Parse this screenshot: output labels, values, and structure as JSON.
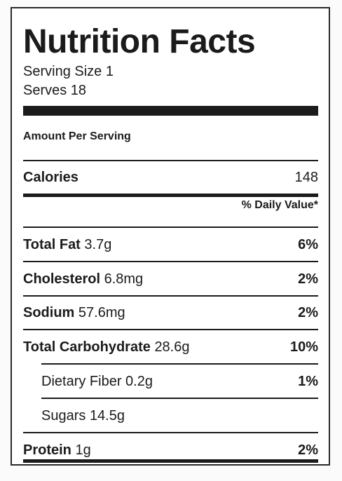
{
  "label": {
    "title": "Nutrition Facts",
    "serving_size": "Serving Size 1",
    "serves": "Serves 18",
    "amount_per_serving": "Amount Per Serving",
    "calories": {
      "label": "Calories",
      "value": "148"
    },
    "daily_value_header": "% Daily Value*",
    "nutrients": [
      {
        "name": "Total Fat",
        "amount": "3.7g",
        "dv": "6%"
      },
      {
        "name": "Cholesterol",
        "amount": "6.8mg",
        "dv": "2%"
      },
      {
        "name": "Sodium",
        "amount": "57.6mg",
        "dv": "2%"
      },
      {
        "name": "Total Carbohydrate",
        "amount": "28.6g",
        "dv": "10%"
      },
      {
        "name": "Dietary Fiber",
        "amount": "0.2g",
        "dv": "1%"
      },
      {
        "name": "Sugars",
        "amount": "14.5g",
        "dv": ""
      },
      {
        "name": "Protein",
        "amount": "1g",
        "dv": "2%"
      }
    ]
  }
}
